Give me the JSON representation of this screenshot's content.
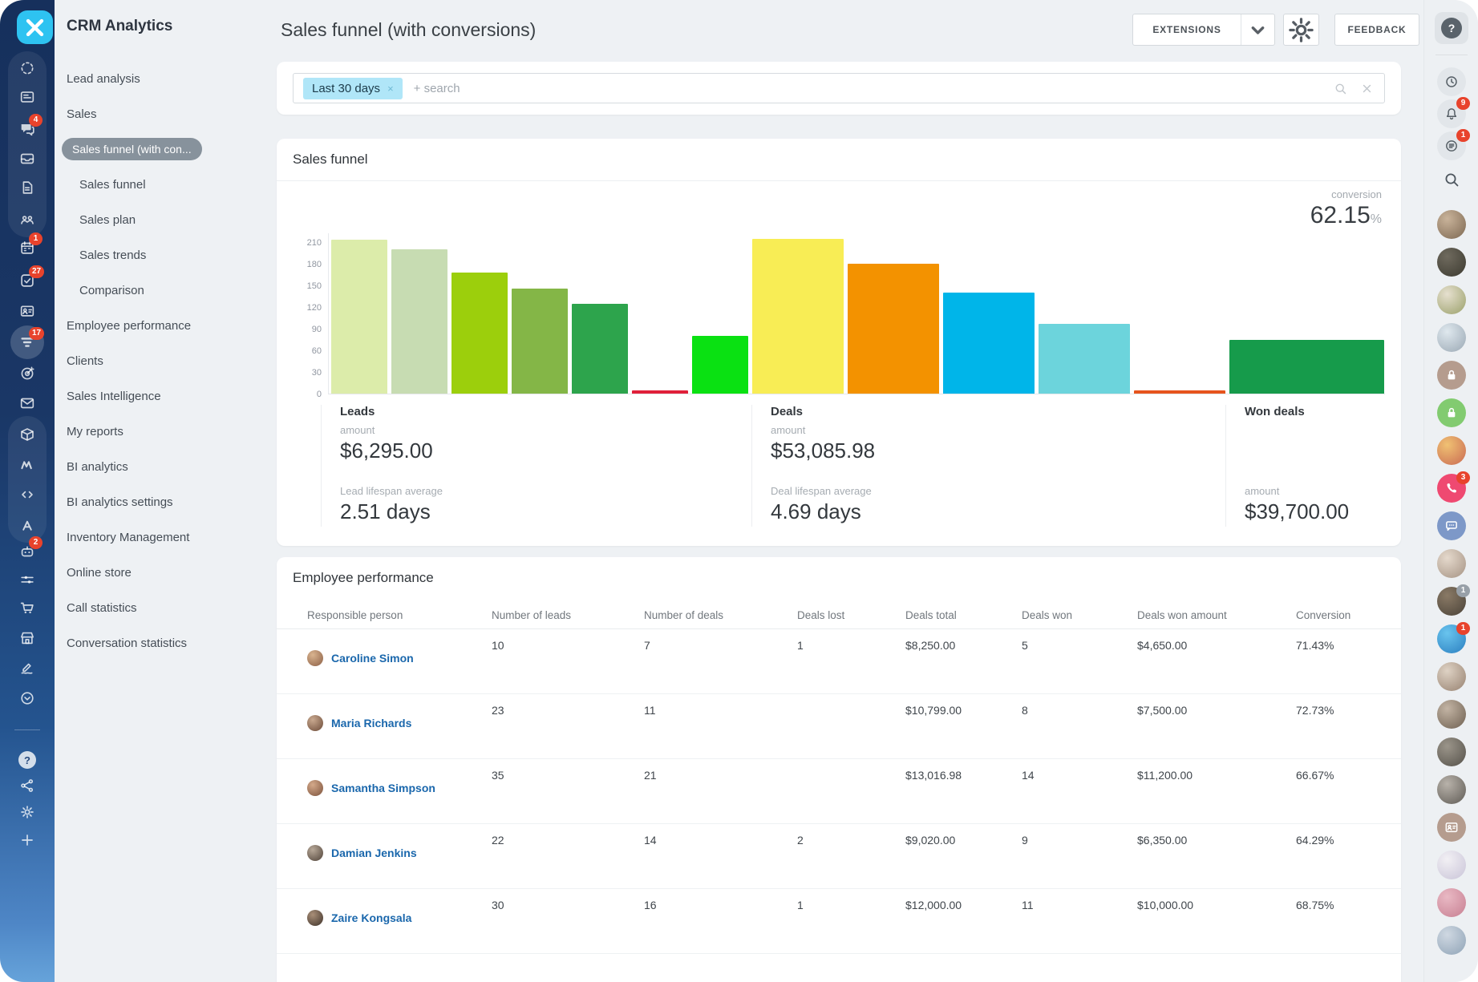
{
  "app_title": "CRM Analytics",
  "window": {
    "close_icon": "x"
  },
  "header": {
    "title": "Sales funnel (with conversions)",
    "extensions_label": "EXTENSIONS",
    "feedback_label": "FEEDBACK"
  },
  "filter": {
    "chip": "Last 30 days",
    "chip_close": "×",
    "placeholder": "+ search"
  },
  "colors": {
    "accent_cyan": "#2ec3f1",
    "chip_bg": "#b0e6f8",
    "badge_red": "#e8432c",
    "link_blue": "#1a67ac",
    "active_pill": "#87929c"
  },
  "sidebar": {
    "items": [
      {
        "label": "Lead analysis",
        "level": 0,
        "active": false
      },
      {
        "label": "Sales",
        "level": 0,
        "active": false
      },
      {
        "label": "Sales funnel (with con...",
        "level": 0,
        "active": true
      },
      {
        "label": "Sales funnel",
        "level": 1,
        "active": false
      },
      {
        "label": "Sales plan",
        "level": 1,
        "active": false
      },
      {
        "label": "Sales trends",
        "level": 1,
        "active": false
      },
      {
        "label": "Comparison",
        "level": 1,
        "active": false
      },
      {
        "label": "Employee performance",
        "level": 0,
        "active": false
      },
      {
        "label": "Clients",
        "level": 0,
        "active": false
      },
      {
        "label": "Sales Intelligence",
        "level": 0,
        "active": false
      },
      {
        "label": "My reports",
        "level": 0,
        "active": false
      },
      {
        "label": "BI analytics",
        "level": 0,
        "active": false
      },
      {
        "label": "BI analytics settings",
        "level": 0,
        "active": false
      },
      {
        "label": "Inventory Management",
        "level": 0,
        "active": false
      },
      {
        "label": "Online store",
        "level": 0,
        "active": false
      },
      {
        "label": "Call statistics",
        "level": 0,
        "active": false
      },
      {
        "label": "Conversation statistics",
        "level": 0,
        "active": false
      }
    ]
  },
  "left_rail": {
    "items": [
      {
        "icon": "messenger-spinner"
      },
      {
        "icon": "feed"
      },
      {
        "icon": "chat",
        "badge": "4"
      },
      {
        "icon": "inbox"
      },
      {
        "icon": "document"
      },
      {
        "icon": "people"
      },
      {
        "icon": "calendar",
        "badge": "1"
      },
      {
        "icon": "tasks",
        "badge": "27"
      },
      {
        "icon": "contact-card"
      },
      {
        "icon": "crm-funnel",
        "badge": "17",
        "active": true
      },
      {
        "icon": "target"
      },
      {
        "icon": "mail"
      },
      {
        "icon": "product-box"
      },
      {
        "icon": "m-logo"
      },
      {
        "icon": "code"
      },
      {
        "icon": "letter-a"
      },
      {
        "icon": "robot",
        "badge": "2"
      },
      {
        "icon": "sliders"
      },
      {
        "icon": "cart"
      },
      {
        "icon": "store"
      },
      {
        "icon": "signature"
      },
      {
        "icon": "check-circle"
      },
      {
        "divider": true
      },
      {
        "icon": "help"
      },
      {
        "icon": "share"
      },
      {
        "icon": "gear"
      },
      {
        "icon": "plus"
      }
    ]
  },
  "right_rail": {
    "items": [
      {
        "type": "help-button",
        "icon": "help-icon",
        "label": "?"
      },
      {
        "type": "divider"
      },
      {
        "type": "icon",
        "icon": "history"
      },
      {
        "type": "icon",
        "icon": "bell",
        "badge": "9"
      },
      {
        "type": "icon",
        "icon": "planner",
        "badge": "1"
      },
      {
        "type": "plain-icon",
        "icon": "search"
      },
      {
        "type": "avatar",
        "c1": "#c9b39a",
        "c2": "#7d6852"
      },
      {
        "type": "avatar",
        "c1": "#6f6a5e",
        "c2": "#3c3a30"
      },
      {
        "type": "avatar",
        "c1": "#e6e0cf",
        "c2": "#9aa06a"
      },
      {
        "type": "avatar",
        "c1": "#dfe8ee",
        "c2": "#9aa8b4"
      },
      {
        "type": "icon-circle",
        "icon": "lock",
        "bg": "#b59c8e"
      },
      {
        "type": "icon-circle",
        "icon": "lock",
        "bg": "#82cb70"
      },
      {
        "type": "avatar",
        "c1": "#f0c173",
        "c2": "#c96a52"
      },
      {
        "type": "icon-circle",
        "icon": "phone",
        "bg": "#ef4971",
        "badge": "3"
      },
      {
        "type": "icon-circle",
        "icon": "chat-dots",
        "bg": "#7d98c8"
      },
      {
        "type": "avatar",
        "c1": "#e5d9cc",
        "c2": "#a59384"
      },
      {
        "type": "avatar",
        "c1": "#8a7a66",
        "c2": "#4a4238",
        "badge": "1",
        "badge_bg": "#98a0a8"
      },
      {
        "type": "avatar",
        "c1": "#69c4ee",
        "c2": "#2b7fc0",
        "badge": "1"
      },
      {
        "type": "avatar",
        "c1": "#ded2c4",
        "c2": "#978271"
      },
      {
        "type": "avatar",
        "c1": "#c3b4a4",
        "c2": "#6e6051"
      },
      {
        "type": "avatar",
        "c1": "#9b958a",
        "c2": "#55514a"
      },
      {
        "type": "avatar",
        "c1": "#b8b2aa",
        "c2": "#5f5b55"
      },
      {
        "type": "icon-circle",
        "icon": "id-card",
        "bg": "#b59c8e"
      },
      {
        "type": "avatar",
        "c1": "#f2f0f4",
        "c2": "#c9c4d8"
      },
      {
        "type": "avatar",
        "c1": "#e9b9c4",
        "c2": "#c77f92"
      },
      {
        "type": "avatar",
        "c1": "#cfd8e2",
        "c2": "#8fa3b6"
      }
    ]
  },
  "funnel_card": {
    "title": "Sales funnel",
    "conversion": {
      "label": "conversion",
      "value": "62.15",
      "unit": "%"
    },
    "stats": [
      {
        "title": "Leads",
        "metrics": [
          {
            "label": "amount",
            "value": "$6,295.00"
          },
          {
            "label": "Lead lifespan average",
            "value": "2.51 days"
          }
        ]
      },
      {
        "title": "Deals",
        "metrics": [
          {
            "label": "amount",
            "value": "$53,085.98"
          },
          {
            "label": "Deal lifespan average",
            "value": "4.69 days"
          }
        ]
      },
      {
        "title": "Won deals",
        "metrics": [
          {
            "label": "amount",
            "value": "$39,700.00"
          }
        ]
      }
    ]
  },
  "chart_data": {
    "type": "bar",
    "title": "Sales funnel",
    "xlabel": "",
    "ylabel": "",
    "yticks": [
      210,
      180,
      150,
      120,
      90,
      60,
      30,
      0
    ],
    "ylim": [
      0,
      225
    ],
    "grid": false,
    "legend": false,
    "bars": [
      {
        "value": 213,
        "color": "#dcecaa",
        "group": "leads"
      },
      {
        "value": 200,
        "color": "#c7dcb2",
        "group": "leads"
      },
      {
        "value": 168,
        "color": "#9ccf0c",
        "group": "leads"
      },
      {
        "value": 146,
        "color": "#84b647",
        "group": "leads"
      },
      {
        "value": 125,
        "color": "#2da44c",
        "group": "leads"
      },
      {
        "value": 5,
        "color": "#e0203a",
        "group": "leads"
      },
      {
        "value": 80,
        "color": "#0ae112",
        "group": "leads"
      },
      {
        "value": 215,
        "color": "#f8ed55",
        "group": "deals"
      },
      {
        "value": 180,
        "color": "#f39200",
        "group": "deals"
      },
      {
        "value": 140,
        "color": "#00b5e9",
        "group": "deals"
      },
      {
        "value": 97,
        "color": "#6cd4dc",
        "group": "deals"
      },
      {
        "value": 5,
        "color": "#e6541d",
        "group": "deals"
      },
      {
        "value": 75,
        "color": "#169b4b",
        "group": "won"
      }
    ]
  },
  "employee_card": {
    "title": "Employee performance",
    "columns": [
      "Responsible person",
      "Number of leads",
      "Number of deals",
      "Deals lost",
      "Deals total",
      "Deals won",
      "Deals won amount",
      "Conversion"
    ],
    "rows": [
      {
        "name": "Caroline Simon",
        "av1": "#d9b48f",
        "av2": "#8c5f46",
        "cells": [
          "10",
          "7",
          "1",
          "$8,250.00",
          "5",
          "$4,650.00",
          "71.43%"
        ]
      },
      {
        "name": "Maria Richards",
        "av1": "#c9a98f",
        "av2": "#6b4a38",
        "cells": [
          "23",
          "11",
          "",
          "$10,799.00",
          "8",
          "$7,500.00",
          "72.73%"
        ]
      },
      {
        "name": "Samantha Simpson",
        "av1": "#d4a98a",
        "av2": "#7c523c",
        "cells": [
          "35",
          "21",
          "",
          "$13,016.98",
          "14",
          "$11,200.00",
          "66.67%"
        ]
      },
      {
        "name": "Damian Jenkins",
        "av1": "#b7a898",
        "av2": "#4f4238",
        "cells": [
          "22",
          "14",
          "2",
          "$9,020.00",
          "9",
          "$6,350.00",
          "64.29%"
        ]
      },
      {
        "name": "Zaire Kongsala",
        "av1": "#a98f78",
        "av2": "#3e322a",
        "cells": [
          "30",
          "16",
          "1",
          "$12,000.00",
          "11",
          "$10,000.00",
          "68.75%"
        ]
      }
    ]
  }
}
